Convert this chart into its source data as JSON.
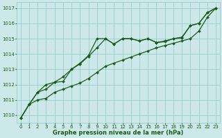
{
  "x": [
    0,
    1,
    2,
    3,
    4,
    5,
    6,
    7,
    8,
    9,
    10,
    11,
    12,
    13,
    14,
    15,
    16,
    17,
    18,
    19,
    20,
    21,
    22,
    23
  ],
  "line_low": [
    1009.8,
    1010.7,
    1011.0,
    1011.1,
    1011.5,
    1011.7,
    1011.9,
    1012.1,
    1012.4,
    1012.8,
    1013.2,
    1013.4,
    1013.6,
    1013.8,
    1014.0,
    1014.2,
    1014.4,
    1014.55,
    1014.7,
    1014.85,
    1015.0,
    1015.5,
    1016.4,
    1017.0
  ],
  "line_mid": [
    1009.8,
    1010.7,
    1011.5,
    1011.7,
    1012.15,
    1012.2,
    1013.0,
    1013.35,
    1013.85,
    1014.4,
    1015.0,
    1014.65,
    1015.0,
    1015.0,
    1014.85,
    1015.0,
    1014.75,
    1014.8,
    1015.0,
    1015.05,
    1015.85,
    1016.0,
    1016.7,
    1017.0
  ],
  "line_high": [
    1009.8,
    1010.7,
    1011.5,
    1012.0,
    1012.15,
    1012.5,
    1013.0,
    1013.4,
    1013.9,
    1015.0,
    1015.0,
    1014.65,
    1015.0,
    1015.0,
    1014.85,
    1015.0,
    1014.75,
    1014.85,
    1015.0,
    1015.1,
    1015.85,
    1016.0,
    1016.7,
    1017.0
  ],
  "yticks": [
    1010,
    1011,
    1012,
    1013,
    1014,
    1015,
    1016,
    1017
  ],
  "ylim": [
    1009.5,
    1017.4
  ],
  "xlim": [
    -0.5,
    23.5
  ],
  "background_color": "#cce8e8",
  "grid_color": "#99cccc",
  "line_color": "#1a5c1a",
  "xlabel": "Graphe pression niveau de la mer (hPa)",
  "xlabel_color": "#1a5c1a",
  "tick_color": "#1a5c1a",
  "marker": "D",
  "marker_size": 2.0,
  "linewidth": 0.9,
  "tick_fontsize": 5.0,
  "xlabel_fontsize": 6.0
}
